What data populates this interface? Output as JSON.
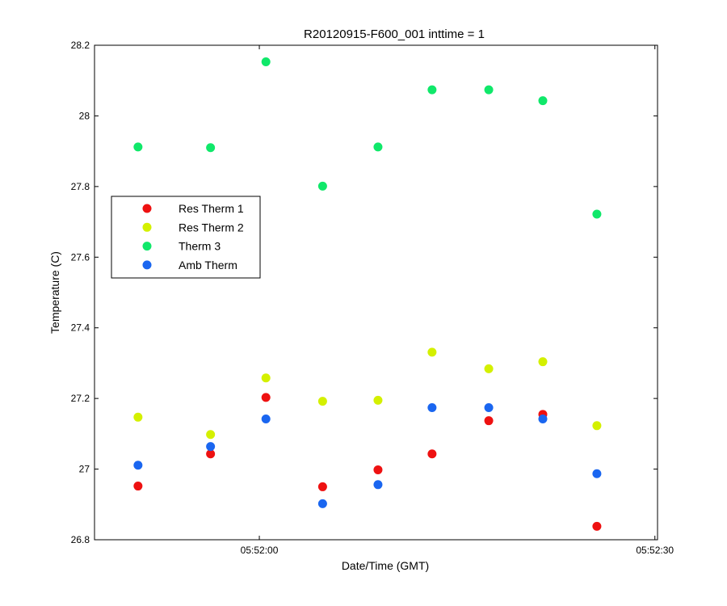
{
  "chart_data": {
    "type": "scatter",
    "title": "R20120915-F600_001 inttime = 1",
    "xlabel": "Date/Time (GMT)",
    "ylabel": "Temperature (C)",
    "xlim": [
      -12.5,
      30.2
    ],
    "ylim": [
      26.8,
      28.2
    ],
    "x_ticks": [
      {
        "value": 0,
        "label": "05:52:00"
      },
      {
        "value": 30,
        "label": "05:52:30"
      }
    ],
    "y_ticks": [
      {
        "value": 26.8,
        "label": "26.8"
      },
      {
        "value": 27.0,
        "label": "27"
      },
      {
        "value": 27.2,
        "label": "27.2"
      },
      {
        "value": 27.4,
        "label": "27.4"
      },
      {
        "value": 27.6,
        "label": "27.6"
      },
      {
        "value": 27.8,
        "label": "27.8"
      },
      {
        "value": 28.0,
        "label": "28"
      },
      {
        "value": 28.2,
        "label": "28.2"
      }
    ],
    "x": [
      -9.2,
      -3.7,
      0.5,
      4.8,
      9.0,
      13.1,
      17.4,
      21.5,
      25.6
    ],
    "grid": false,
    "legend_position": "upper-left",
    "series": [
      {
        "name": "Res Therm 1",
        "color": "#ee1111",
        "values": [
          26.952,
          27.043,
          27.203,
          26.95,
          26.998,
          27.043,
          27.137,
          27.155,
          26.838
        ]
      },
      {
        "name": "Res Therm 2",
        "color": "#d4f000",
        "values": [
          27.147,
          27.098,
          27.258,
          27.192,
          27.195,
          27.331,
          27.284,
          27.304,
          27.123
        ]
      },
      {
        "name": "Therm 3",
        "color": "#10e86a",
        "values": [
          27.912,
          27.91,
          28.153,
          27.801,
          27.912,
          28.074,
          28.074,
          28.043,
          27.722
        ]
      },
      {
        "name": "Amb Therm",
        "color": "#1a66f0",
        "values": [
          27.011,
          27.064,
          27.142,
          26.902,
          26.956,
          27.174,
          27.174,
          27.142,
          26.987
        ]
      }
    ]
  }
}
